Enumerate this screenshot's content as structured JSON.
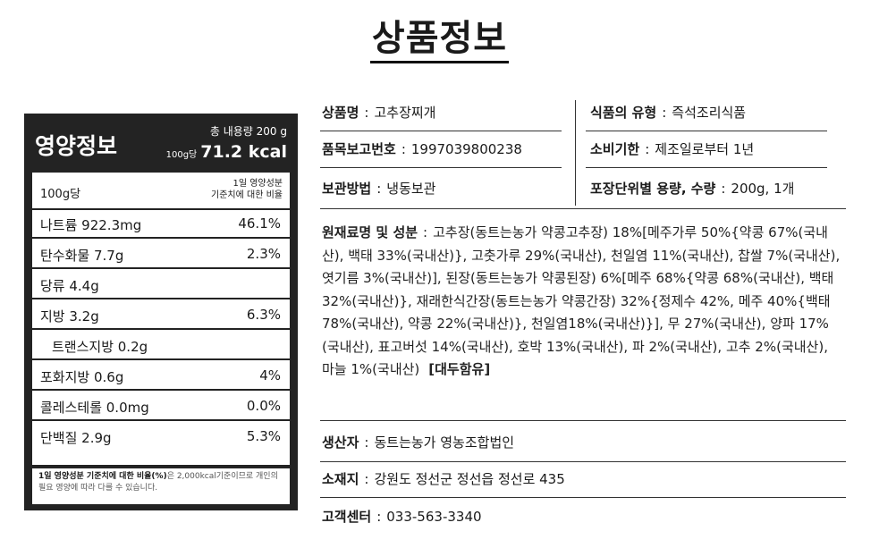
{
  "title": "상품정보",
  "nutrition": {
    "title": "영양정보",
    "total_weight": "총 내용량 200 g",
    "per_label": "100g당",
    "kcal": "71.2 kcal",
    "basis_amount": "100g당",
    "basis_ref_line1": "1일 영양성분",
    "basis_ref_line2": "기준치에 대한 비율",
    "rows": [
      {
        "name": "나트륨 922.3mg",
        "pct": "46.1%"
      },
      {
        "name": "탄수화물 7.7g",
        "pct": "2.3%"
      },
      {
        "name": "당류 4.4g",
        "pct": ""
      },
      {
        "name": "지방 3.2g",
        "pct": "6.3%"
      },
      {
        "name": "트랜스지방 0.2g",
        "pct": ""
      },
      {
        "name": "포화지방 0.6g",
        "pct": "4%"
      },
      {
        "name": "콜레스테롤 0.0mg",
        "pct": "0.0%"
      },
      {
        "name": "단백질 2.9g",
        "pct": "5.3%"
      }
    ],
    "footnote_bold": "1일 영양성분 기준치에 대한 비율(%)",
    "footnote_rest": "은 2,000kcal기준이므로 개인의 필요 영양에 따라 다를 수 있습니다."
  },
  "info": {
    "product_name": {
      "key": "상품명",
      "value": "고추장찌개"
    },
    "food_type": {
      "key": "식품의 유형",
      "value": "즉석조리식품"
    },
    "report_no": {
      "key": "품목보고번호",
      "value": "1997039800238"
    },
    "expiry": {
      "key": "소비기한",
      "value": "제조일로부터 1년"
    },
    "storage": {
      "key": "보관방법",
      "value": "냉동보관"
    },
    "package": {
      "key": "포장단위별 용량, 수량",
      "value": "200g, 1개"
    },
    "ingredients": {
      "key": "원재료명 및 성분",
      "value": "고추장(동트는농가 약콩고추장) 18%[메주가루 50%{약콩 67%(국내산), 백태 33%(국내산)}, 고춧가루 29%(국내산), 천일염 11%(국내산), 찹쌀 7%(국내산), 엿기름 3%(국내산)], 된장(동트는농가 약콩된장) 6%[메주 68%{약콩 68%(국내산), 백태 32%(국내산)}, 재래한식간장(동트는농가 약콩간장) 32%{정제수 42%, 메주 40%{백태 78%(국내산), 약콩 22%(국내산)}, 천일염18%(국내산)}], 무 27%(국내산), 양파 17%(국내산), 표고버섯 14%(국내산), 호박 13%(국내산), 파 2%(국내산), 고추 2%(국내산), 마늘 1%(국내산)",
      "allergen": "[대두함유]"
    },
    "producer": {
      "key": "생산자",
      "value": "동트는농가 영농조합법인"
    },
    "address": {
      "key": "소재지",
      "value": "강원도 정선군 정선읍 정선로 435"
    },
    "contact": {
      "key": "고객센터",
      "value": "033-563-3340"
    }
  }
}
